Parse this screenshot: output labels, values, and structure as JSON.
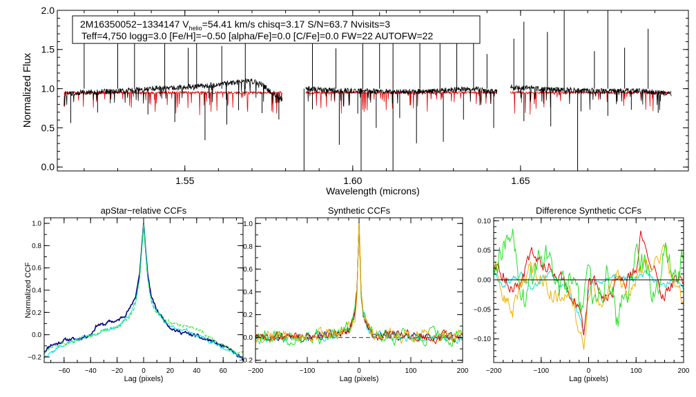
{
  "top": {
    "info_line1_pre": "2M16350052−1334147  V",
    "info_line1_sub": "helio",
    "info_line1_post": "=54.41 km/s  chisq=3.17  S/N=63.7  Nvisits=3",
    "info_line2": "Teff=4,750 logg=3.0 [Fe/H]=−0.50 [alpha/Fe]=0.0 [C/Fe]=0.0 FW=22 AUTOFW=22",
    "xlabel": "Wavelength (microns)",
    "ylabel": "Normalized Flux"
  },
  "colors": {
    "observed": "#000000",
    "model": "#e00000",
    "navy": "#000080",
    "cyan": "#00e0e0",
    "green": "#20e020",
    "red": "#e00000",
    "orange": "#f0b000",
    "dashed": "#555555"
  },
  "chart_data": [
    {
      "type": "line",
      "title": "",
      "xlabel": "Wavelength (microns)",
      "ylabel": "Normalized Flux",
      "xlim": [
        1.512,
        1.7
      ],
      "ylim": [
        -0.05,
        2.0
      ],
      "xticks": [
        1.55,
        1.6,
        1.65
      ],
      "xtick_labels": [
        "1.55",
        "1.60",
        "1.65"
      ],
      "yticks": [
        0.0,
        0.5,
        1.0,
        1.5,
        2.0
      ],
      "ytick_labels": [
        "0.0",
        "0.5",
        "1.0",
        "1.5",
        "2.0"
      ],
      "chips": [
        {
          "x": [
            1.514,
            1.52,
            1.53,
            1.54,
            1.55,
            1.56,
            1.568,
            1.572,
            1.579
          ],
          "y": [
            0.93,
            0.95,
            0.97,
            1.0,
            1.02,
            1.05,
            1.1,
            1.08,
            0.86
          ]
        },
        {
          "x": [
            1.586,
            1.595,
            1.605,
            1.615,
            1.625,
            1.635,
            1.643
          ],
          "y": [
            1.0,
            0.98,
            0.97,
            0.96,
            0.97,
            1.0,
            0.96
          ]
        },
        {
          "x": [
            1.647,
            1.655,
            1.665,
            1.675,
            1.685,
            1.695
          ],
          "y": [
            1.02,
            1.0,
            0.98,
            0.97,
            0.97,
            0.94
          ]
        }
      ],
      "model_level": 0.95,
      "spikes": [
        1.52,
        1.53,
        1.535,
        1.544,
        1.551,
        1.5535,
        1.561,
        1.568,
        1.588,
        1.595,
        1.603,
        1.608,
        1.612,
        1.62,
        1.626,
        1.631,
        1.636,
        1.64,
        1.648,
        1.651,
        1.658,
        1.663,
        1.672,
        1.676,
        1.681,
        1.688
      ],
      "dips": [
        1.516,
        1.524,
        1.539,
        1.547,
        1.556,
        1.5625,
        1.566,
        1.573,
        1.578,
        1.588,
        1.596,
        1.6015,
        1.607,
        1.614,
        1.619,
        1.627,
        1.633,
        1.642,
        1.651,
        1.659,
        1.668,
        1.676,
        1.683,
        1.691
      ]
    },
    {
      "type": "line",
      "title": "apStar−relative CCFs",
      "xlabel": "Lag (pixels)",
      "ylabel": "Normalized CCF",
      "xlim": [
        -75,
        75
      ],
      "ylim": [
        -0.25,
        1.05
      ],
      "xticks": [
        -60,
        -40,
        -20,
        0,
        20,
        40,
        60
      ],
      "xtick_labels": [
        "−60",
        "−40",
        "−20",
        "0",
        "20",
        "40",
        "60"
      ],
      "yticks": [
        -0.2,
        0.0,
        0.2,
        0.4,
        0.6,
        0.8,
        1.0
      ],
      "ytick_labels": [
        "−0.2",
        "0.0",
        "0.2",
        "0.4",
        "0.6",
        "0.8",
        "1.0"
      ],
      "series": [
        {
          "name": "navy",
          "x": [
            -75,
            -70,
            -65,
            -60,
            -55,
            -50,
            -45,
            -40,
            -35,
            -30,
            -25,
            -20,
            -15,
            -10,
            -6,
            -3,
            -1,
            0,
            1,
            3,
            6,
            10,
            15,
            20,
            25,
            30,
            35,
            40,
            45,
            50,
            55,
            60,
            65,
            70,
            75
          ],
          "y": [
            -0.15,
            -0.09,
            -0.08,
            -0.05,
            -0.04,
            -0.04,
            -0.02,
            0.0,
            0.09,
            0.09,
            0.12,
            0.12,
            0.17,
            0.24,
            0.35,
            0.55,
            0.85,
            0.99,
            0.85,
            0.55,
            0.33,
            0.22,
            0.14,
            0.07,
            0.03,
            0.02,
            0.0,
            -0.01,
            -0.04,
            -0.05,
            -0.08,
            -0.11,
            -0.13,
            -0.18,
            -0.23
          ]
        },
        {
          "name": "cyan",
          "x": [
            -75,
            -70,
            -65,
            -60,
            -55,
            -50,
            -45,
            -40,
            -35,
            -30,
            -25,
            -20,
            -15,
            -10,
            -6,
            -3,
            -1,
            0,
            1,
            3,
            6,
            10,
            15,
            20,
            25,
            30,
            35,
            40,
            45,
            50,
            55,
            60,
            65,
            70,
            75
          ],
          "y": [
            -0.2,
            -0.17,
            -0.12,
            -0.1,
            -0.07,
            -0.04,
            -0.02,
            -0.01,
            0.02,
            0.03,
            0.05,
            0.07,
            0.13,
            0.19,
            0.3,
            0.52,
            0.83,
            0.99,
            0.83,
            0.52,
            0.3,
            0.21,
            0.14,
            0.09,
            0.05,
            0.05,
            0.03,
            0.0,
            -0.02,
            -0.06,
            -0.09,
            -0.12,
            -0.15,
            -0.18,
            -0.2
          ]
        },
        {
          "name": "green",
          "x": [
            -75,
            -70,
            -65,
            -60,
            -55,
            -50,
            -45,
            -40,
            -35,
            -30,
            -25,
            -20,
            -15,
            -10,
            -6,
            -3,
            -1,
            0,
            1,
            3,
            6,
            10,
            15,
            20,
            25,
            30,
            35,
            40,
            45,
            50,
            55,
            60,
            65,
            70,
            75
          ],
          "y": [
            -0.16,
            -0.12,
            -0.1,
            -0.08,
            -0.06,
            -0.04,
            -0.02,
            -0.01,
            0.02,
            0.04,
            0.05,
            0.07,
            0.11,
            0.17,
            0.28,
            0.5,
            0.82,
            0.99,
            0.82,
            0.5,
            0.28,
            0.2,
            0.15,
            0.11,
            0.09,
            0.08,
            0.07,
            0.05,
            0.02,
            -0.02,
            -0.06,
            -0.09,
            -0.12,
            -0.15,
            -0.17
          ],
          "dashed": true
        }
      ]
    },
    {
      "type": "line",
      "title": "Synthetic CCFs",
      "xlabel": "Lag (pixels)",
      "ylabel": "",
      "xlim": [
        -200,
        200
      ],
      "ylim": [
        -0.22,
        1.05
      ],
      "xticks": [
        -200,
        -100,
        0,
        100,
        200
      ],
      "xtick_labels": [
        "−200",
        "−100",
        "0",
        "100",
        "200"
      ],
      "yticks": [
        -0.2,
        0.0,
        0.2,
        0.4,
        0.6,
        0.8,
        1.0
      ],
      "ytick_labels": [
        "−0.2",
        "0.0",
        "0.2",
        "0.4",
        "0.6",
        "0.8",
        "1.0"
      ],
      "zero_line": 0.0,
      "peak": {
        "x": [
          -40,
          -25,
          -15,
          -8,
          -4,
          -2,
          0,
          2,
          4,
          8,
          15,
          25,
          40
        ],
        "y": [
          0.02,
          0.05,
          0.1,
          0.2,
          0.4,
          0.7,
          1.0,
          0.7,
          0.4,
          0.2,
          0.1,
          0.05,
          0.02
        ]
      },
      "series_names": [
        "navy",
        "cyan",
        "green",
        "red",
        "orange"
      ]
    },
    {
      "type": "line",
      "title": "Difference Synthetic CCFs",
      "xlabel": "Lag (pixels)",
      "ylabel": "",
      "xlim": [
        -200,
        200
      ],
      "ylim": [
        -0.14,
        0.105
      ],
      "xticks": [
        -200,
        -100,
        0,
        100,
        200
      ],
      "xtick_labels": [
        "−200",
        "−100",
        "0",
        "100",
        "200"
      ],
      "yticks": [
        -0.1,
        -0.05,
        0.0,
        0.05,
        0.1
      ],
      "ytick_labels": [
        "−0.10",
        "−0.05",
        "0.00",
        "0.05",
        "0.10"
      ],
      "zero_line": 0.0,
      "series": [
        {
          "name": "cyan",
          "x": [
            -200,
            -180,
            -160,
            -140,
            -120,
            -100,
            -80,
            -60,
            -40,
            -20,
            -10,
            0,
            10,
            20,
            40,
            60,
            80,
            100,
            120,
            140,
            160,
            180,
            200
          ],
          "y": [
            0.01,
            -0.01,
            0.0,
            0.01,
            -0.02,
            0.0,
            0.01,
            -0.01,
            -0.02,
            -0.06,
            -0.09,
            -0.02,
            0.0,
            -0.01,
            0.0,
            0.01,
            0.0,
            0.0,
            0.01,
            0.0,
            -0.01,
            0.0,
            -0.02
          ]
        },
        {
          "name": "red",
          "x": [
            -200,
            -180,
            -160,
            -140,
            -120,
            -100,
            -80,
            -60,
            -40,
            -20,
            -10,
            0,
            10,
            20,
            40,
            60,
            80,
            100,
            110,
            120,
            140,
            160,
            180,
            200
          ],
          "y": [
            0.02,
            0.01,
            -0.02,
            0.0,
            0.05,
            0.03,
            0.02,
            0.01,
            -0.02,
            -0.05,
            -0.1,
            -0.01,
            0.0,
            -0.02,
            -0.03,
            0.0,
            0.0,
            0.02,
            0.09,
            0.04,
            0.01,
            -0.03,
            0.0,
            0.0
          ]
        },
        {
          "name": "orange",
          "x": [
            -200,
            -180,
            -160,
            -140,
            -120,
            -100,
            -80,
            -60,
            -40,
            -20,
            -10,
            0,
            10,
            20,
            40,
            60,
            80,
            100,
            120,
            140,
            160,
            180,
            200
          ],
          "y": [
            0.02,
            -0.03,
            -0.05,
            0.0,
            0.02,
            0.01,
            -0.02,
            -0.03,
            -0.01,
            -0.08,
            -0.13,
            -0.03,
            0.0,
            -0.04,
            -0.02,
            0.01,
            -0.03,
            0.0,
            0.02,
            0.03,
            0.05,
            0.0,
            -0.04
          ]
        },
        {
          "name": "green",
          "x": [
            -200,
            -180,
            -160,
            -140,
            -120,
            -100,
            -80,
            -60,
            -40,
            -20,
            -10,
            0,
            10,
            20,
            40,
            60,
            80,
            100,
            120,
            140,
            160,
            180,
            200
          ],
          "y": [
            0.03,
            0.06,
            0.08,
            -0.05,
            0.01,
            0.05,
            0.03,
            -0.02,
            0.0,
            -0.05,
            -0.03,
            0.01,
            -0.04,
            -0.03,
            0.02,
            -0.07,
            -0.02,
            0.04,
            0.02,
            -0.04,
            0.06,
            0.0,
            0.05
          ]
        }
      ]
    }
  ]
}
